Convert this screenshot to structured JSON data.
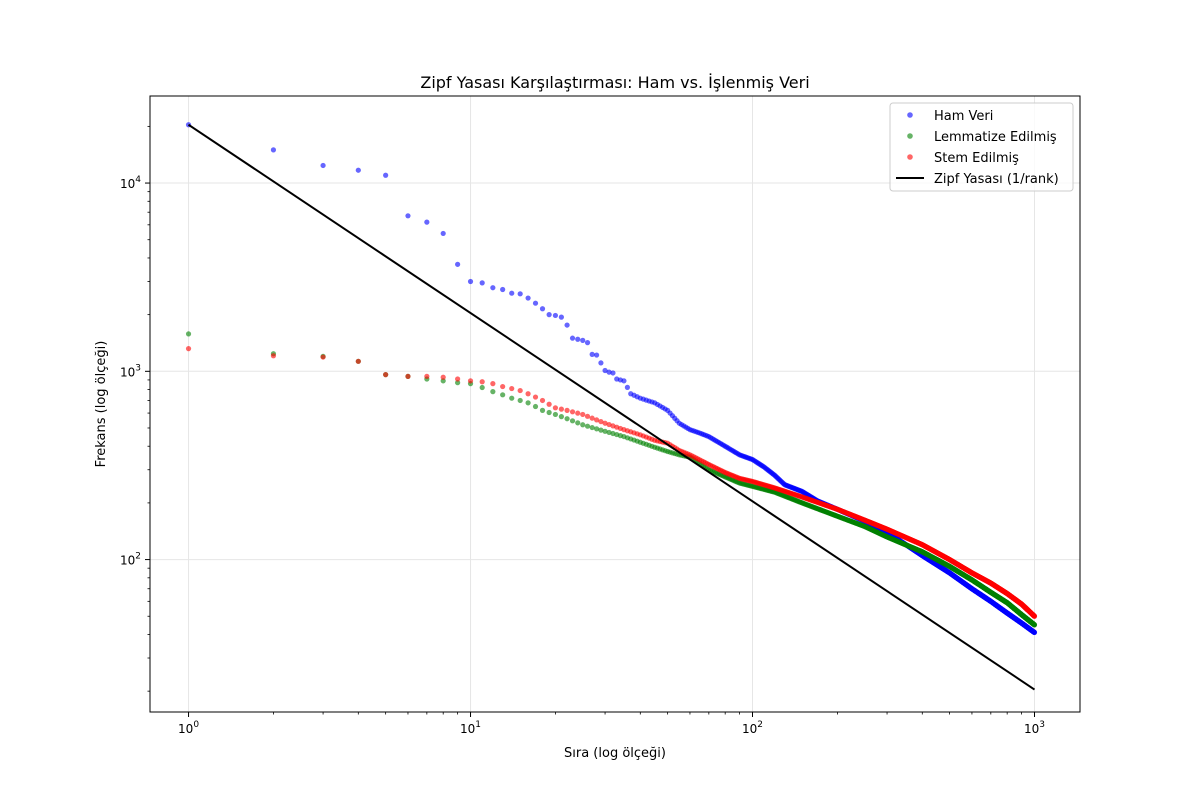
{
  "chart_data": {
    "type": "scatter",
    "title": "Zipf Yasası Karşılaştırması: Ham vs. İşlenmiş Veri",
    "xlabel": "Sıra (log ölçeği)",
    "ylabel": "Frekans (log ölçeği)",
    "xscale": "log",
    "yscale": "log",
    "xlim": [
      0.73,
      1450
    ],
    "ylim": [
      15.5,
      29000
    ],
    "x_ticks": [
      {
        "base": "10",
        "exp": "0"
      },
      {
        "base": "10",
        "exp": "1"
      },
      {
        "base": "10",
        "exp": "2"
      },
      {
        "base": "10",
        "exp": "3"
      }
    ],
    "y_ticks": [
      {
        "base": "10",
        "exp": "2"
      },
      {
        "base": "10",
        "exp": "3"
      },
      {
        "base": "10",
        "exp": "4"
      }
    ],
    "grid": true,
    "legend_position": "top-right",
    "series": [
      {
        "name": "Ham Veri",
        "color": "#0000ff",
        "kind": "points",
        "rank_range": [
          1,
          1000
        ],
        "points": [
          [
            1,
            20400
          ],
          [
            2,
            15000
          ],
          [
            3,
            12400
          ],
          [
            4,
            11700
          ],
          [
            5,
            11000
          ],
          [
            6,
            6700
          ],
          [
            7,
            6200
          ],
          [
            8,
            5400
          ],
          [
            9,
            3700
          ],
          [
            10,
            3000
          ],
          [
            11,
            2950
          ],
          [
            12,
            2780
          ],
          [
            13,
            2720
          ],
          [
            14,
            2600
          ],
          [
            15,
            2580
          ],
          [
            16,
            2450
          ],
          [
            17,
            2300
          ],
          [
            18,
            2150
          ],
          [
            19,
            2000
          ],
          [
            20,
            1980
          ],
          [
            21,
            1940
          ],
          [
            22,
            1760
          ],
          [
            23,
            1500
          ],
          [
            24,
            1480
          ],
          [
            25,
            1460
          ],
          [
            26,
            1420
          ],
          [
            27,
            1230
          ],
          [
            28,
            1220
          ],
          [
            30,
            1010
          ],
          [
            31,
            990
          ],
          [
            32,
            980
          ],
          [
            33,
            910
          ],
          [
            34,
            900
          ],
          [
            35,
            890
          ],
          [
            37,
            760
          ],
          [
            40,
            720
          ],
          [
            45,
            680
          ],
          [
            50,
            620
          ],
          [
            55,
            530
          ],
          [
            60,
            490
          ],
          [
            65,
            470
          ],
          [
            70,
            450
          ],
          [
            80,
            400
          ],
          [
            90,
            360
          ],
          [
            100,
            340
          ],
          [
            110,
            310
          ],
          [
            120,
            280
          ],
          [
            130,
            250
          ],
          [
            150,
            230
          ],
          [
            170,
            205
          ],
          [
            200,
            185
          ],
          [
            250,
            160
          ],
          [
            300,
            140
          ],
          [
            400,
            105
          ],
          [
            500,
            85
          ],
          [
            600,
            70
          ],
          [
            700,
            60
          ],
          [
            800,
            52
          ],
          [
            900,
            46
          ],
          [
            1000,
            41
          ]
        ]
      },
      {
        "name": "Lemmatize Edilmiş",
        "color": "#008000",
        "kind": "points",
        "rank_range": [
          1,
          1000
        ],
        "points": [
          [
            1,
            1580
          ],
          [
            2,
            1240
          ],
          [
            3,
            1200
          ],
          [
            4,
            1130
          ],
          [
            5,
            960
          ],
          [
            6,
            940
          ],
          [
            7,
            910
          ],
          [
            8,
            890
          ],
          [
            9,
            870
          ],
          [
            10,
            860
          ],
          [
            11,
            820
          ],
          [
            12,
            780
          ],
          [
            13,
            750
          ],
          [
            14,
            720
          ],
          [
            15,
            700
          ],
          [
            16,
            680
          ],
          [
            17,
            650
          ],
          [
            18,
            620
          ],
          [
            20,
            590
          ],
          [
            22,
            560
          ],
          [
            25,
            520
          ],
          [
            30,
            480
          ],
          [
            35,
            450
          ],
          [
            40,
            420
          ],
          [
            45,
            395
          ],
          [
            50,
            375
          ],
          [
            55,
            360
          ],
          [
            60,
            350
          ],
          [
            70,
            300
          ],
          [
            80,
            275
          ],
          [
            90,
            255
          ],
          [
            100,
            245
          ],
          [
            120,
            228
          ],
          [
            150,
            200
          ],
          [
            200,
            170
          ],
          [
            250,
            150
          ],
          [
            300,
            132
          ],
          [
            400,
            110
          ],
          [
            500,
            92
          ],
          [
            600,
            78
          ],
          [
            700,
            67
          ],
          [
            800,
            59
          ],
          [
            900,
            51
          ],
          [
            1000,
            45
          ]
        ]
      },
      {
        "name": "Stem Edilmiş",
        "color": "#ff0000",
        "kind": "points",
        "rank_range": [
          1,
          1000
        ],
        "points": [
          [
            1,
            1320
          ],
          [
            2,
            1210
          ],
          [
            3,
            1190
          ],
          [
            4,
            1130
          ],
          [
            5,
            960
          ],
          [
            6,
            940
          ],
          [
            7,
            940
          ],
          [
            8,
            930
          ],
          [
            9,
            910
          ],
          [
            10,
            890
          ],
          [
            11,
            880
          ],
          [
            12,
            860
          ],
          [
            13,
            830
          ],
          [
            14,
            810
          ],
          [
            15,
            790
          ],
          [
            16,
            760
          ],
          [
            17,
            730
          ],
          [
            18,
            700
          ],
          [
            20,
            640
          ],
          [
            22,
            620
          ],
          [
            25,
            590
          ],
          [
            30,
            530
          ],
          [
            35,
            490
          ],
          [
            40,
            460
          ],
          [
            45,
            430
          ],
          [
            50,
            415
          ],
          [
            55,
            380
          ],
          [
            60,
            360
          ],
          [
            70,
            320
          ],
          [
            80,
            290
          ],
          [
            90,
            270
          ],
          [
            100,
            260
          ],
          [
            120,
            240
          ],
          [
            150,
            215
          ],
          [
            200,
            185
          ],
          [
            250,
            162
          ],
          [
            300,
            145
          ],
          [
            400,
            120
          ],
          [
            500,
            100
          ],
          [
            600,
            85
          ],
          [
            700,
            75
          ],
          [
            800,
            66
          ],
          [
            900,
            58
          ],
          [
            1000,
            50
          ]
        ]
      },
      {
        "name": "Zipf Yasası (1/rank)",
        "color": "#000000",
        "kind": "line",
        "points": [
          [
            1,
            20400
          ],
          [
            1000,
            20.4
          ]
        ]
      }
    ]
  }
}
